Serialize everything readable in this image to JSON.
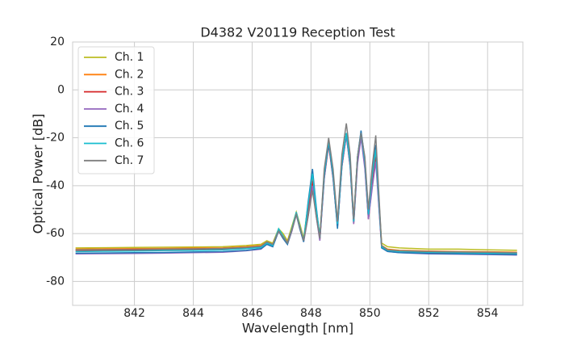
{
  "chart_data": {
    "type": "line",
    "title": "D4382 V20119 Reception Test",
    "x_label": "Wavelength [nm]",
    "y_label": "Optical Power [dB]",
    "xlim": [
      839.9,
      855.2
    ],
    "ylim": [
      -90,
      20
    ],
    "xticks": [
      842,
      844,
      846,
      848,
      850,
      852,
      854
    ],
    "yticks": [
      -80,
      -60,
      -40,
      -20,
      0,
      20
    ],
    "grid": true,
    "legend": "upper left",
    "x": [
      840,
      841,
      842,
      843,
      844,
      845,
      845.8,
      846.3,
      846.5,
      846.7,
      846.9,
      847.05,
      847.2,
      847.35,
      847.5,
      847.62,
      847.75,
      847.9,
      848.05,
      848.18,
      848.3,
      848.45,
      848.6,
      848.75,
      848.9,
      849.05,
      849.2,
      849.33,
      849.45,
      849.58,
      849.7,
      849.83,
      849.95,
      850.08,
      850.2,
      850.3,
      850.4,
      850.6,
      851,
      852,
      853,
      854,
      855
    ],
    "series": [
      {
        "name": "Ch. 1",
        "color": "#bcbd22",
        "values": [
          -66,
          -65.9,
          -65.8,
          -65.7,
          -65.6,
          -65.5,
          -65,
          -64.5,
          -63,
          -64,
          -58,
          -60,
          -63,
          -57,
          -51,
          -56,
          -62,
          -48,
          -36,
          -50,
          -61,
          -35,
          -22,
          -35,
          -55,
          -30,
          -18,
          -30,
          -54,
          -28,
          -18,
          -30,
          -52,
          -38,
          -28,
          -45,
          -64,
          -65.5,
          -66,
          -66.5,
          -66.5,
          -66.8,
          -67
        ]
      },
      {
        "name": "Ch. 2",
        "color": "#ff7f0e",
        "values": [
          -66.5,
          -66.4,
          -66.3,
          -66.2,
          -66.1,
          -66,
          -65.5,
          -65,
          -63.5,
          -64.5,
          -58.5,
          -61,
          -63.5,
          -58,
          -52,
          -57,
          -63,
          -50,
          -37,
          -51,
          -62,
          -36,
          -22,
          -36,
          -56,
          -31,
          -18,
          -31,
          -55,
          -29,
          -18,
          -31,
          -53,
          -39,
          -27,
          -46,
          -65,
          -66.5,
          -67,
          -67.3,
          -67.5,
          -67.6,
          -67.8
        ]
      },
      {
        "name": "Ch. 3",
        "color": "#d62728",
        "values": [
          -67,
          -67,
          -66.9,
          -66.8,
          -66.7,
          -66.5,
          -66,
          -65.5,
          -64,
          -65,
          -59,
          -61.5,
          -64,
          -58.5,
          -52,
          -57.5,
          -63,
          -51,
          -38,
          -52,
          -62.5,
          -37,
          -23,
          -37,
          -57,
          -32,
          -19,
          -32,
          -56,
          -30,
          -19,
          -32,
          -54,
          -40,
          -28,
          -47,
          -65.5,
          -67,
          -67.5,
          -68,
          -68,
          -68.3,
          -68.5
        ]
      },
      {
        "name": "Ch. 4",
        "color": "#9467bd",
        "values": [
          -68.5,
          -68.4,
          -68.3,
          -68.2,
          -68,
          -67.8,
          -67.2,
          -66.5,
          -64.5,
          -65.5,
          -59,
          -62,
          -64.5,
          -59,
          -52,
          -58,
          -63.5,
          -53,
          -40,
          -53,
          -63,
          -37,
          -22,
          -37,
          -57,
          -32,
          -19,
          -32,
          -56,
          -31,
          -20,
          -33,
          -54,
          -41,
          -30,
          -48,
          -66,
          -67.5,
          -68,
          -68.5,
          -68.6,
          -68.8,
          -69
        ]
      },
      {
        "name": "Ch. 5",
        "color": "#1f77b4",
        "values": [
          -68.2,
          -68.1,
          -68,
          -67.9,
          -67.7,
          -67.5,
          -67,
          -66.3,
          -64.5,
          -65.5,
          -59,
          -62,
          -64.5,
          -58.5,
          -52,
          -58,
          -63.5,
          -47,
          -33,
          -49,
          -62,
          -36,
          -22,
          -36,
          -58,
          -31,
          -18,
          -31,
          -55,
          -28,
          -17,
          -29,
          -52,
          -35,
          -23,
          -44,
          -66,
          -67.5,
          -68,
          -68.3,
          -68.5,
          -68.6,
          -68.8
        ]
      },
      {
        "name": "Ch. 6",
        "color": "#17becf",
        "values": [
          -67.5,
          -67.4,
          -67.3,
          -67.1,
          -67,
          -66.8,
          -66.3,
          -65.8,
          -64,
          -65,
          -58,
          -61,
          -64,
          -58,
          -51,
          -57,
          -63,
          -48,
          -35,
          -50,
          -61.5,
          -35,
          -21,
          -35,
          -56,
          -30,
          -18,
          -30,
          -55,
          -28,
          -18,
          -30,
          -52,
          -36,
          -25,
          -45,
          -65.5,
          -67,
          -67.5,
          -67.8,
          -68,
          -68.2,
          -68.3
        ]
      },
      {
        "name": "Ch. 7",
        "color": "#7f7f7f",
        "values": [
          -66.8,
          -66.7,
          -66.6,
          -66.5,
          -66.4,
          -66.2,
          -65.8,
          -65.3,
          -63.5,
          -64.5,
          -59,
          -61.5,
          -64,
          -58.5,
          -52,
          -57.5,
          -63,
          -53,
          -42,
          -53,
          -62,
          -33,
          -20,
          -33,
          -55,
          -27,
          -14,
          -27,
          -54,
          -28,
          -18,
          -28,
          -50,
          -32,
          -19,
          -42,
          -65,
          -66.8,
          -67.2,
          -67.5,
          -67.7,
          -67.8,
          -68
        ]
      }
    ]
  }
}
